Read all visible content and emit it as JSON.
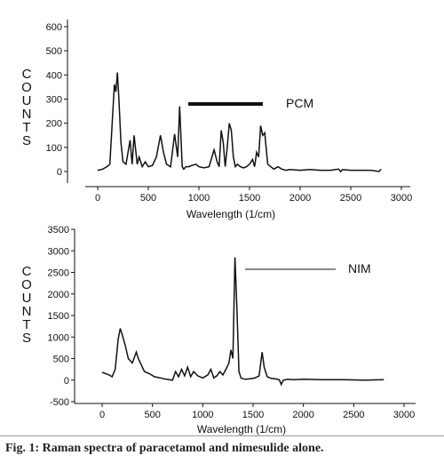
{
  "caption": "Fig. 1: Raman spectra of paracetamol and nimesulide alone.",
  "chart_data": [
    {
      "type": "line",
      "title": "",
      "xlabel": "Wavelength (1/cm)",
      "ylabel": "COUNTS",
      "xlim": [
        0,
        3000
      ],
      "ylim": [
        0,
        600
      ],
      "xticks": [
        "0",
        "500",
        "1000",
        "1500",
        "2000",
        "2500",
        "3000"
      ],
      "yticks": [
        "0",
        "100",
        "200",
        "300",
        "400",
        "500",
        "600"
      ],
      "legend": "PCM",
      "series": [
        {
          "name": "PCM",
          "x": [
            0,
            50,
            90,
            120,
            150,
            165,
            180,
            195,
            210,
            230,
            250,
            280,
            320,
            340,
            360,
            390,
            410,
            440,
            470,
            500,
            540,
            580,
            620,
            650,
            680,
            720,
            760,
            790,
            810,
            835,
            850,
            870,
            900,
            930,
            970,
            1000,
            1050,
            1100,
            1150,
            1180,
            1200,
            1220,
            1240,
            1260,
            1280,
            1300,
            1320,
            1340,
            1360,
            1380,
            1410,
            1440,
            1470,
            1500,
            1530,
            1550,
            1570,
            1590,
            1610,
            1630,
            1650,
            1680,
            1710,
            1740,
            1780,
            1820,
            1860,
            1900,
            2000,
            2100,
            2200,
            2300,
            2380,
            2400,
            2420,
            2500,
            2600,
            2700,
            2780,
            2800
          ],
          "y": [
            5,
            10,
            20,
            30,
            250,
            360,
            330,
            410,
            300,
            120,
            40,
            30,
            130,
            30,
            150,
            30,
            60,
            20,
            40,
            20,
            25,
            60,
            150,
            80,
            30,
            20,
            155,
            60,
            270,
            20,
            10,
            20,
            20,
            25,
            30,
            20,
            15,
            20,
            90,
            40,
            20,
            170,
            120,
            20,
            100,
            200,
            170,
            60,
            20,
            30,
            20,
            15,
            20,
            30,
            50,
            20,
            80,
            60,
            190,
            150,
            160,
            30,
            20,
            10,
            20,
            10,
            5,
            8,
            5,
            8,
            5,
            5,
            10,
            0,
            8,
            5,
            5,
            5,
            0,
            10
          ]
        }
      ]
    },
    {
      "type": "line",
      "title": "",
      "xlabel": "Wavelength (1/cm)",
      "ylabel": "COUNTS",
      "xlim": [
        -100,
        3000
      ],
      "ylim": [
        -500,
        3500
      ],
      "xticks": [
        "0",
        "500",
        "1000",
        "1500",
        "2000",
        "2500",
        "3000"
      ],
      "yticks": [
        "-500",
        "0",
        "500",
        "1000",
        "1500",
        "2000",
        "2500",
        "3000",
        "3500"
      ],
      "legend": "NIM",
      "series": [
        {
          "name": "NIM",
          "x": [
            0,
            60,
            100,
            130,
            160,
            180,
            200,
            230,
            260,
            300,
            340,
            360,
            390,
            420,
            470,
            520,
            580,
            640,
            700,
            730,
            760,
            790,
            820,
            850,
            880,
            910,
            950,
            1000,
            1050,
            1080,
            1110,
            1140,
            1170,
            1200,
            1230,
            1260,
            1280,
            1300,
            1320,
            1340,
            1360,
            1380,
            1420,
            1470,
            1520,
            1560,
            1590,
            1610,
            1640,
            1680,
            1720,
            1760,
            1780,
            1800,
            1850,
            1900,
            2000,
            2200,
            2400,
            2600,
            2800
          ],
          "y": [
            180,
            130,
            80,
            250,
            950,
            1200,
            1050,
            800,
            500,
            400,
            650,
            500,
            350,
            200,
            150,
            80,
            50,
            20,
            0,
            200,
            80,
            250,
            100,
            300,
            80,
            200,
            100,
            50,
            120,
            250,
            50,
            100,
            200,
            120,
            250,
            400,
            700,
            500,
            2850,
            1600,
            200,
            50,
            20,
            30,
            50,
            100,
            650,
            300,
            80,
            40,
            30,
            10,
            -100,
            0,
            20,
            10,
            20,
            10,
            10,
            0,
            10
          ]
        }
      ]
    }
  ]
}
